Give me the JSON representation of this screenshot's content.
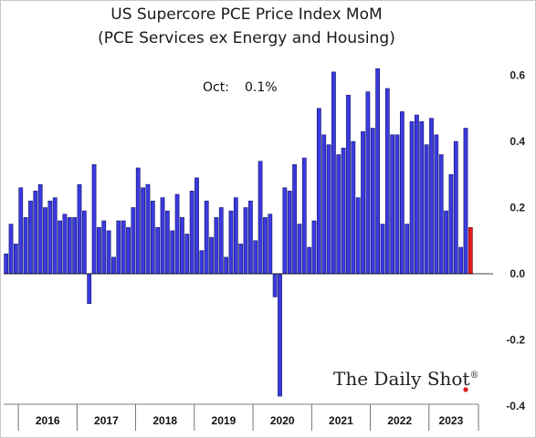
{
  "chart_data": {
    "type": "bar",
    "title": "US Supercore PCE Price Index MoM",
    "subtitle": "(PCE Services ex Energy and Housing)",
    "annotation_label": "Oct:",
    "annotation_value": "0.1%",
    "ylim": [
      -0.4,
      0.65
    ],
    "yticks": [
      -0.4,
      -0.2,
      0.0,
      0.2,
      0.4,
      0.6
    ],
    "ytick_labels": [
      "-0.4",
      "-0.2",
      "0.0",
      "0.2",
      "0.4",
      "0.6"
    ],
    "years": [
      "2016",
      "2017",
      "2018",
      "2019",
      "2020",
      "2021",
      "2022",
      "2023"
    ],
    "start": "2015-10",
    "values": [
      0.06,
      0.15,
      0.09,
      0.26,
      0.17,
      0.22,
      0.25,
      0.27,
      0.2,
      0.22,
      0.23,
      0.16,
      0.18,
      0.17,
      0.17,
      0.27,
      0.19,
      -0.09,
      0.33,
      0.14,
      0.16,
      0.13,
      0.05,
      0.16,
      0.16,
      0.14,
      0.2,
      0.32,
      0.26,
      0.27,
      0.22,
      0.14,
      0.23,
      0.19,
      0.13,
      0.24,
      0.17,
      0.12,
      0.25,
      0.29,
      0.07,
      0.22,
      0.11,
      0.17,
      0.2,
      0.05,
      0.19,
      0.23,
      0.09,
      0.2,
      0.22,
      0.1,
      0.34,
      0.17,
      0.18,
      -0.07,
      -0.37,
      0.26,
      0.25,
      0.33,
      0.15,
      0.35,
      0.08,
      0.16,
      0.5,
      0.42,
      0.39,
      0.61,
      0.36,
      0.38,
      0.54,
      0.4,
      0.23,
      0.43,
      0.55,
      0.44,
      0.62,
      0.15,
      0.56,
      0.42,
      0.42,
      0.49,
      0.15,
      0.46,
      0.48,
      0.46,
      0.39,
      0.47,
      0.42,
      0.36,
      0.19,
      0.3,
      0.4,
      0.08,
      0.44,
      0.14
    ],
    "bar_color": "#3a3adf",
    "highlight_color": "#e01b1b"
  },
  "brand": {
    "text": "The Daily Shot",
    "mark": "®"
  }
}
